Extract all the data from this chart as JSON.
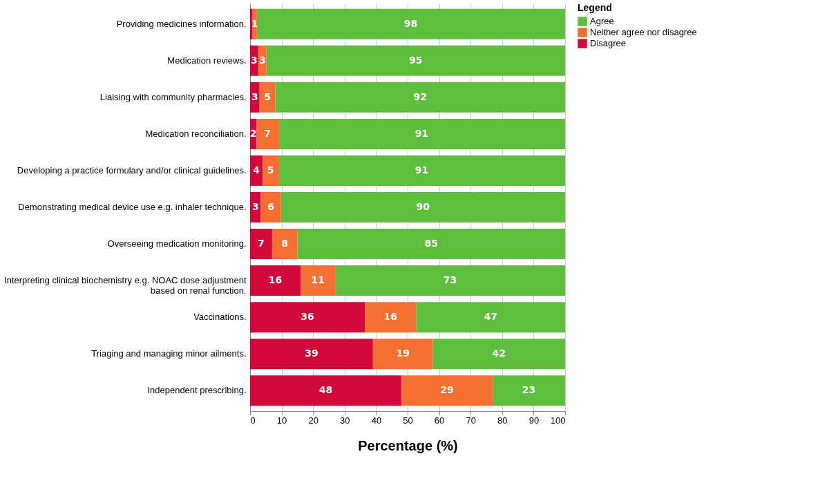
{
  "chart_data": {
    "type": "bar",
    "orientation": "horizontal",
    "stacked": true,
    "xlabel": "Percentage (%)",
    "legend_title": "Legend",
    "legend": "top right",
    "grid": "x",
    "categories": [
      "Providing medicines information.",
      "Medication reviews.",
      "Liaising with community pharmacies.",
      "Medication reconciliation.",
      "Developing a practice formulary and/or clinical guidelines.",
      "Demonstrating medical device use e.g. inhaler technique.",
      "Overseeing medication monitoring.",
      "Interpreting clinical biochemistry e.g. NOAC dose adjustment based on renal function.",
      "Vaccinations.",
      "Triaging and managing minor ailments.",
      "Independent prescribing."
    ],
    "xlim": [
      0,
      100
    ],
    "xticks": [
      0,
      10,
      20,
      30,
      40,
      50,
      60,
      70,
      80,
      90,
      100
    ],
    "series": [
      {
        "name": "Disagree",
        "color": "#d1093a",
        "values": [
          0.8,
          2.6,
          3,
          2,
          4,
          3.4,
          7,
          16,
          36.4,
          39,
          48
        ],
        "value_labels": [
          null,
          "3",
          "3",
          "2",
          "4",
          "3",
          "7",
          "16",
          "36",
          "39",
          "48"
        ]
      },
      {
        "name": "Neither agree nor disagree",
        "color": "#f36f32",
        "values": [
          1.2,
          2.6,
          5,
          7,
          5,
          6.4,
          8,
          11,
          16.3,
          19,
          29
        ],
        "value_labels": [
          "1",
          "3",
          "5",
          "7",
          "5",
          "6",
          "8",
          "11",
          "16",
          "19",
          "29"
        ]
      },
      {
        "name": "Agree",
        "color": "#5dbf3c",
        "values": [
          98,
          94.8,
          92,
          91,
          91,
          90.2,
          85,
          73,
          47.3,
          42,
          23
        ],
        "value_labels": [
          "98",
          "95",
          "92",
          "91",
          "91",
          "90",
          "85",
          "73",
          "47",
          "42",
          "23"
        ]
      }
    ]
  }
}
